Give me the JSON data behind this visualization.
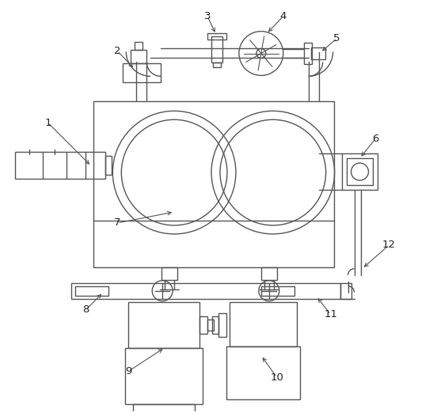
{
  "background_color": "#ffffff",
  "line_color": "#555555",
  "label_color": "#222222",
  "lw": 1.0
}
